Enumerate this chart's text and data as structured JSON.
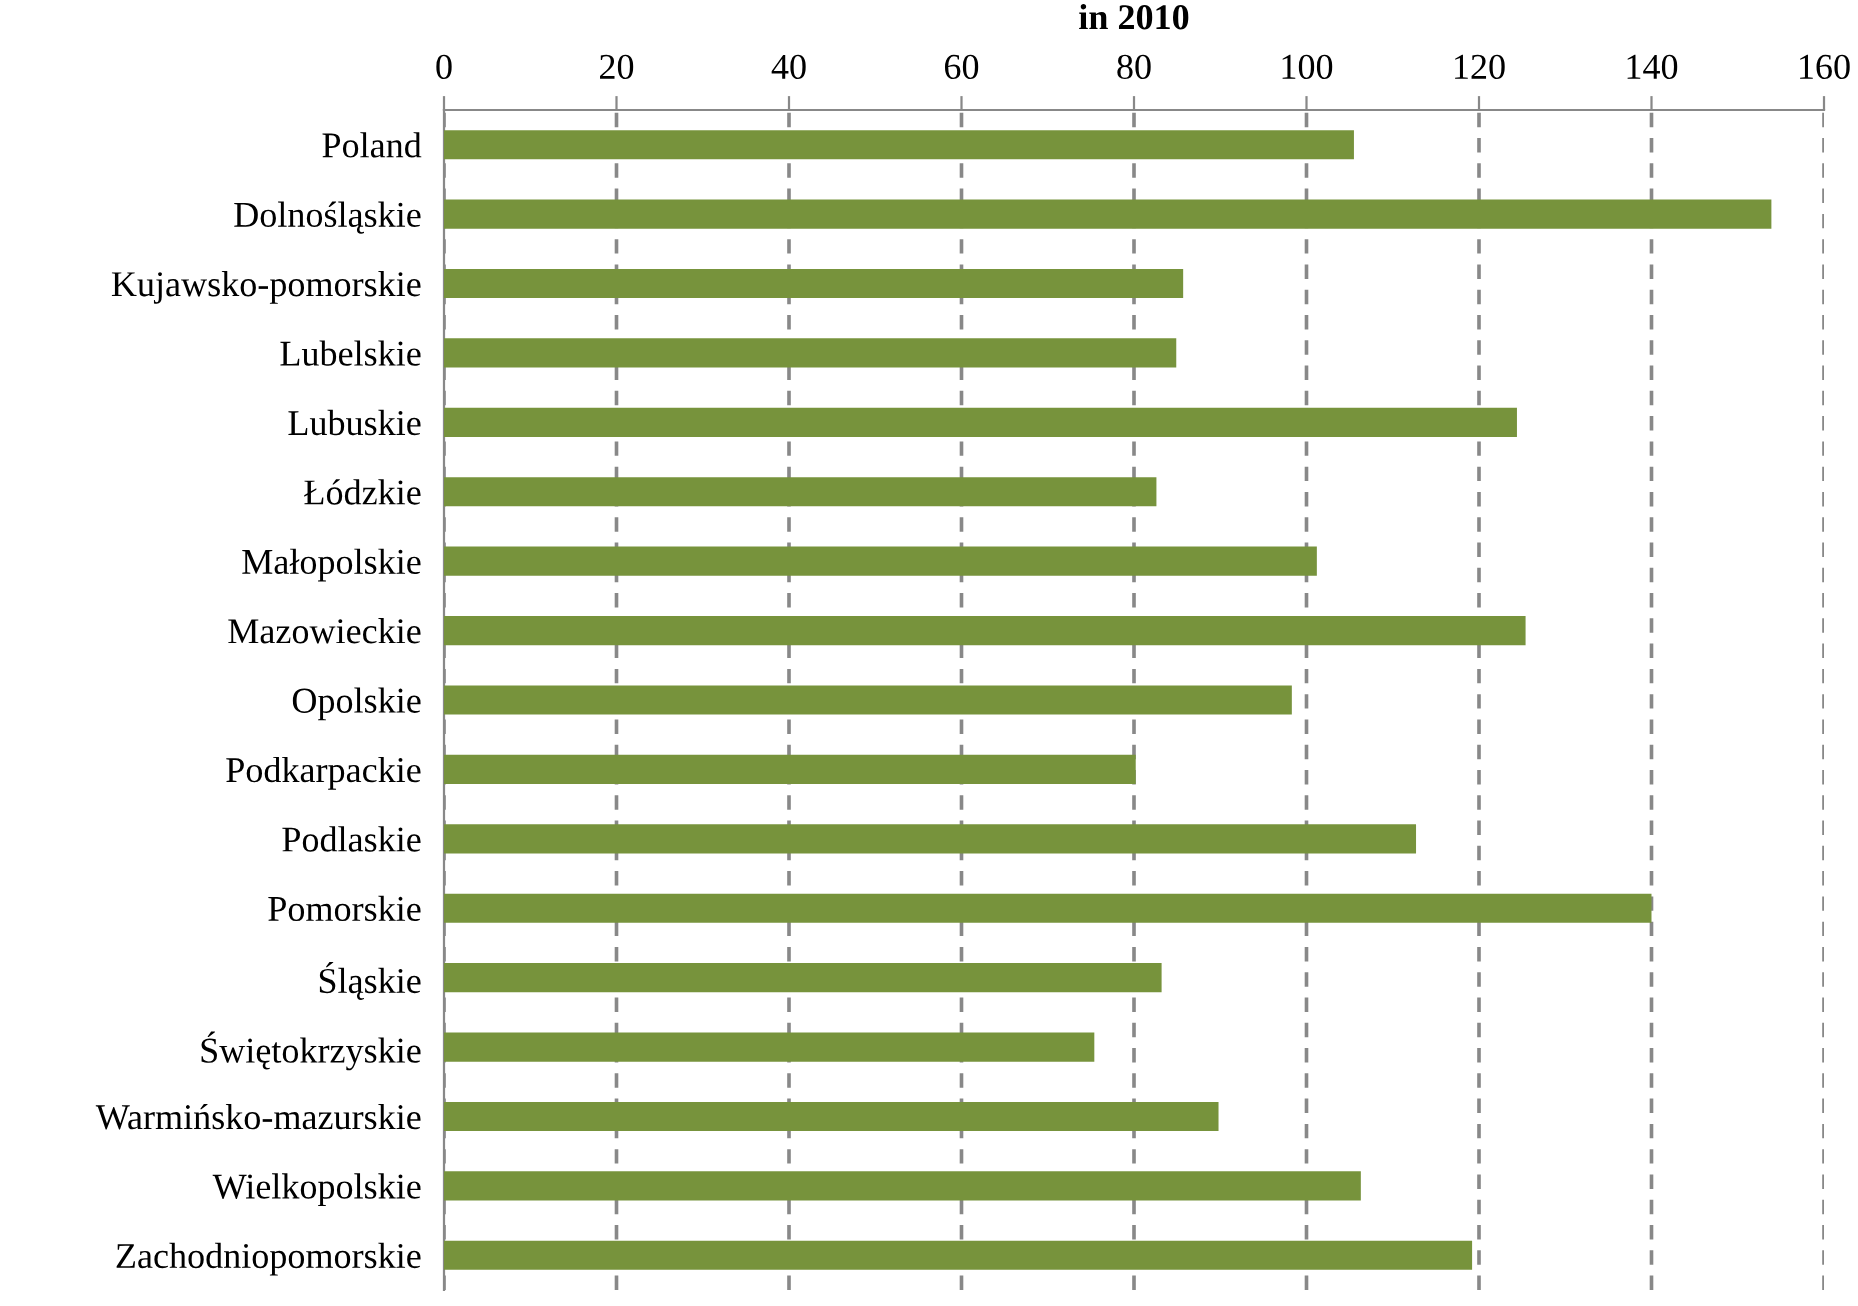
{
  "chart_data": {
    "type": "bar",
    "orientation": "horizontal",
    "title": "in 2010",
    "categories": [
      "Poland",
      "Dolnośląskie",
      "Kujawsko-pomorskie",
      "Lubelskie",
      "Lubuskie",
      "Łódzkie",
      "Małopolskie",
      "Mazowieckie",
      "Opolskie",
      "Podkarpackie",
      "Podlaskie",
      "Pomorskie",
      "Śląskie",
      "Świętokrzyskie",
      "Warmińsko-mazurskie",
      "Wielkopolskie",
      "Zachodniopomorskie"
    ],
    "values": [
      105.5,
      153.9,
      85.7,
      84.9,
      124.4,
      82.6,
      101.2,
      125.4,
      98.3,
      80.2,
      112.7,
      140.0,
      83.2,
      75.4,
      89.8,
      106.3,
      119.2
    ],
    "color": "#77933c",
    "xlim": [
      0,
      160
    ],
    "xticks": [
      0,
      20,
      40,
      60,
      80,
      100,
      120,
      140,
      160
    ],
    "grid": "x"
  }
}
